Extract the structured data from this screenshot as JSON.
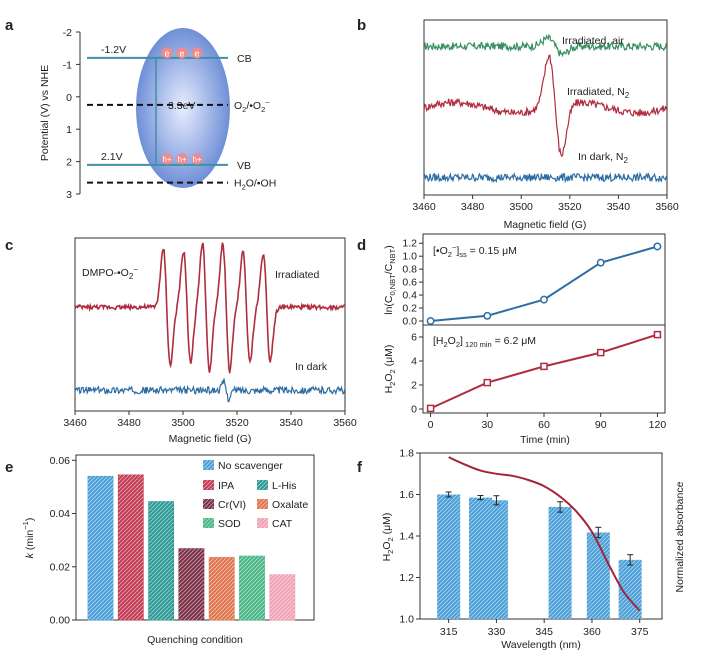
{
  "chart_data": [
    {
      "panel": "a",
      "type": "diagram",
      "ylabel": "Potential (V) vs NHE",
      "ylim": [
        3,
        -2
      ],
      "yticks": [
        "-2",
        "-1",
        "0",
        "1",
        "2",
        "3"
      ],
      "bands": [
        {
          "name": "CB",
          "potential": -1.2,
          "label": "-1.2V"
        },
        {
          "name": "VB",
          "potential": 2.1,
          "label": "2.1V"
        }
      ],
      "gap_label": "3.3eV",
      "redox": [
        {
          "label": "O2/•O2−",
          "potential": 0.25
        },
        {
          "label": "H2O/•OH",
          "potential": 2.65
        }
      ],
      "electron_labels": [
        "e",
        "e",
        "e"
      ],
      "hole_labels": [
        "h+",
        "h+",
        "h+"
      ],
      "colors": {
        "band": "#3f8fa8",
        "ellipse": "#6f8fd6",
        "ellipse_light": "#dfe6ff",
        "redox": "#111111",
        "carrier": "#f08a8a"
      }
    },
    {
      "panel": "b",
      "type": "line",
      "xlabel": "Magnetic field (G)",
      "xlim": [
        3460,
        3560
      ],
      "xticks": [
        3460,
        3480,
        3500,
        3520,
        3540,
        3560
      ],
      "series": [
        {
          "name": "Irradiated, air",
          "color": "#3a8f62",
          "baseline": 0.85,
          "signal_amp": 0.05
        },
        {
          "name": "Irradiated, N2",
          "color": "#b02c3e",
          "baseline": 0.5,
          "signal_amp": 0.32
        },
        {
          "name": "In dark, N2",
          "color": "#2e6da4",
          "baseline": 0.1,
          "signal_amp": 0
        }
      ]
    },
    {
      "panel": "c",
      "type": "line",
      "title": "DMPO-•O2−",
      "xlabel": "Magnetic field (G)",
      "xlim": [
        3460,
        3560
      ],
      "xticks": [
        3460,
        3480,
        3500,
        3520,
        3540,
        3560
      ],
      "peaks_at": [
        3494,
        3501.5,
        3508.5,
        3516,
        3523.5,
        3531
      ],
      "series": [
        {
          "name": "Irradiated",
          "color": "#b02c3e",
          "baseline": 0.6
        },
        {
          "name": "In dark",
          "color": "#2e6da4",
          "baseline": 0.12
        }
      ]
    },
    {
      "panel": "d",
      "type": "line",
      "subplots": [
        {
          "ylabel": "ln(C0,NBT/CNBT)",
          "ylim": [
            0,
            1.25
          ],
          "yticks": [
            0.0,
            0.2,
            0.4,
            0.6,
            0.8,
            1.0,
            1.2
          ],
          "x": [
            0,
            30,
            60,
            90,
            120
          ],
          "values": [
            0.0,
            0.08,
            0.33,
            0.9,
            1.15
          ],
          "color": "#2e6da4",
          "annotation": "[•O2−]ss = 0.15 μM"
        },
        {
          "ylabel": "H2O2 (μM)",
          "ylim": [
            0,
            6.5
          ],
          "yticks": [
            0,
            2,
            4,
            6
          ],
          "x": [
            0,
            30,
            60,
            90,
            120
          ],
          "values": [
            0.05,
            2.2,
            3.55,
            4.7,
            6.2
          ],
          "color": "#b02c3e",
          "annotation": "[H2O2]120 min = 6.2 μM"
        }
      ],
      "xlabel": "Time (min)",
      "xlim": [
        0,
        120
      ],
      "xticks": [
        0,
        30,
        60,
        90,
        120
      ]
    },
    {
      "panel": "e",
      "type": "bar",
      "ylabel": "k (min−1)",
      "xlabel": "Quenching condition",
      "ylim": [
        0,
        0.062
      ],
      "yticks": [
        0.0,
        0.02,
        0.04,
        0.06
      ],
      "categories": [
        "No scavenger",
        "IPA",
        "L-His",
        "Cr(VI)",
        "Oxalate",
        "SOD",
        "CAT"
      ],
      "values": [
        0.054,
        0.0545,
        0.0445,
        0.0268,
        0.0235,
        0.024,
        0.017
      ],
      "colors": [
        "#4a9fd8",
        "#c23a55",
        "#2a9a95",
        "#7a2e45",
        "#e0734c",
        "#48b585",
        "#f0a0b4"
      ],
      "legend_placement": "top-right"
    },
    {
      "panel": "f",
      "type": "bar",
      "ylabel": "H2O2 (μM)",
      "y2label": "Normalized absorbance",
      "xlabel": "Wavelength (nm)",
      "xticks": [
        315,
        330,
        345,
        360,
        375
      ],
      "xlim": [
        306,
        382
      ],
      "ylim": [
        1.0,
        1.8
      ],
      "yticks": [
        1.0,
        1.2,
        1.4,
        1.6,
        1.8
      ],
      "x": [
        315,
        325,
        330,
        350,
        362,
        372
      ],
      "values": [
        1.6,
        1.585,
        1.572,
        1.54,
        1.417,
        1.285
      ],
      "errors": [
        0.012,
        0.01,
        0.022,
        0.025,
        0.025,
        0.025
      ],
      "bar_color": "#4a9fd8",
      "absorbance_curve": {
        "color": "#a3243a",
        "x": [
          315,
          320,
          325,
          330,
          335,
          340,
          345,
          350,
          355,
          360,
          365,
          370,
          375
        ],
        "values": [
          1.78,
          1.745,
          1.715,
          1.7,
          1.69,
          1.67,
          1.64,
          1.59,
          1.52,
          1.42,
          1.27,
          1.13,
          1.04
        ]
      }
    }
  ]
}
